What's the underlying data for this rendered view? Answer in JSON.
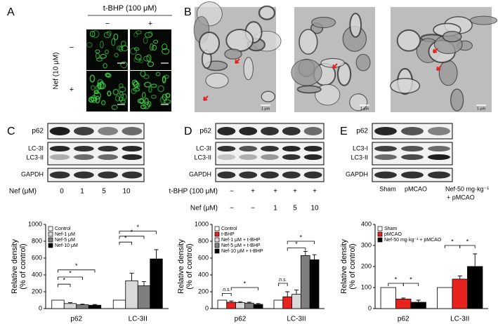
{
  "panel_labels": [
    "A",
    "B",
    "C",
    "D",
    "E"
  ],
  "panel_a": {
    "title": "t-BHP (100 μM)",
    "columns": [
      "−",
      "+"
    ],
    "row_label": "Nef (10 μM)",
    "rows": [
      "−",
      "+"
    ],
    "scale_bars": [
      "10 μm",
      "10 μm",
      "10 μm",
      "10 μm"
    ]
  },
  "panel_b": {
    "scale_bars": [
      "1 μm",
      "1 μm",
      "1 μm"
    ]
  },
  "panel_c": {
    "blot_labels": [
      "p62",
      "LC-3I",
      "LC3-II",
      "GAPDH"
    ],
    "treatment": "Nef (μM)",
    "doses": [
      "0",
      "1",
      "5",
      "10"
    ]
  },
  "panel_d": {
    "blot_labels": [
      "p62",
      "LC-3I",
      "LC3-II",
      "GAPDH"
    ],
    "treatments": [
      {
        "name": "t-BHP (100 μM)",
        "marks": [
          "−",
          "+",
          "+",
          "+",
          "+"
        ]
      },
      {
        "name": "Nef (μM)",
        "marks": [
          "−",
          "−",
          "1",
          "5",
          "10"
        ]
      }
    ]
  },
  "panel_e": {
    "blot_labels": [
      "p62",
      "LC3-I",
      "LC3-II",
      "GAPDH"
    ],
    "groups": [
      [
        "Sham"
      ],
      [
        "pMCAO"
      ],
      [
        "Nef-50 mg·kg⁻¹",
        "+ pMCAO"
      ]
    ]
  },
  "chart_data": [
    {
      "type": "bar",
      "ylabel": [
        "Relative density",
        "(% of control)"
      ],
      "categories": [
        "p62",
        "LC-3II"
      ],
      "ylim": [
        0,
        1000
      ],
      "yticks": [
        0,
        200,
        400,
        600,
        800,
        1000
      ],
      "series": [
        {
          "name": "Control",
          "color": "#ffffff",
          "values": [
            100,
            100
          ],
          "errors": [
            0,
            0
          ]
        },
        {
          "name": "Nef-1 μM",
          "color": "#d9d9d9",
          "values": [
            60,
            330
          ],
          "errors": [
            10,
            90
          ]
        },
        {
          "name": "Nef-5 μM",
          "color": "#7f7f7f",
          "values": [
            45,
            270
          ],
          "errors": [
            8,
            50
          ]
        },
        {
          "name": "Nef-10 μM",
          "color": "#000000",
          "values": [
            40,
            590
          ],
          "errors": [
            8,
            110
          ]
        }
      ],
      "annotations": [
        "*",
        "*",
        "*",
        "*",
        "*",
        "*"
      ]
    },
    {
      "type": "bar",
      "ylabel": [
        "Relative density",
        "(% of control)"
      ],
      "categories": [
        "p62",
        "LC-3II"
      ],
      "ylim": [
        0,
        1000
      ],
      "yticks": [
        0,
        200,
        400,
        600,
        800,
        1000
      ],
      "series": [
        {
          "name": "Control",
          "color": "#ffffff",
          "values": [
            100,
            100
          ],
          "errors": [
            0,
            0
          ]
        },
        {
          "name": "t-BHP",
          "color": "#e8231f",
          "values": [
            75,
            140
          ],
          "errors": [
            15,
            60
          ]
        },
        {
          "name": "Nef-1 μM + t-BHP",
          "color": "#d9d9d9",
          "values": [
            70,
            170
          ],
          "errors": [
            12,
            50
          ]
        },
        {
          "name": "Nef-5 μM + t-BHP",
          "color": "#7f7f7f",
          "values": [
            65,
            630
          ],
          "errors": [
            10,
            50
          ]
        },
        {
          "name": "Nef-10 μM + t-BHP",
          "color": "#000000",
          "values": [
            50,
            580
          ],
          "errors": [
            10,
            60
          ]
        }
      ],
      "annotations": [
        "n.s.",
        "*",
        "n.s.",
        "*",
        "*"
      ]
    },
    {
      "type": "bar",
      "ylabel": [
        "Relative density",
        "(% of control)"
      ],
      "categories": [
        "p62",
        "LC-3II"
      ],
      "ylim": [
        0,
        400
      ],
      "yticks": [
        0,
        100,
        200,
        300,
        400
      ],
      "series": [
        {
          "name": "Sham",
          "color": "#ffffff",
          "values": [
            100,
            100
          ],
          "errors": [
            0,
            0
          ]
        },
        {
          "name": "pMCAO",
          "color": "#e8231f",
          "values": [
            45,
            140
          ],
          "errors": [
            5,
            15
          ]
        },
        {
          "name": "Nef-50 mg·kg⁻¹ + pMCAO",
          "color": "#000000",
          "values": [
            30,
            200
          ],
          "errors": [
            10,
            60
          ]
        }
      ],
      "annotations": [
        "*",
        "*",
        "*",
        "*"
      ]
    }
  ]
}
